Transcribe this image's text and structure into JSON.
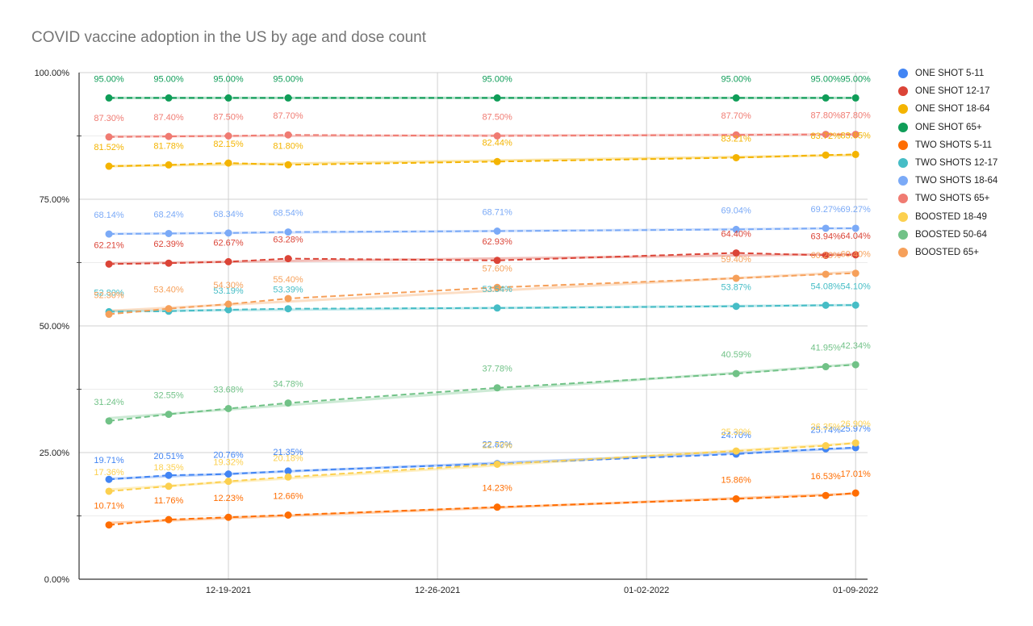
{
  "chart_data": {
    "type": "line",
    "title": "COVID vaccine adoption in the US by age and dose count",
    "xlabel": "",
    "ylabel": "",
    "ylim": [
      0,
      100
    ],
    "y_ticks": [
      "0.00%",
      "25.00%",
      "50.00%",
      "75.00%",
      "100.00%"
    ],
    "x_tick_labels": [
      "12-19-2021",
      "12-26-2021",
      "01-02-2022",
      "01-09-2022"
    ],
    "x_tick_days": [
      17,
      24,
      31,
      38
    ],
    "x": [
      13,
      15,
      17,
      19,
      26,
      34,
      37,
      38
    ],
    "x_dates": [
      "12-15-2021",
      "12-17-2021",
      "12-19-2021",
      "12-21-2021",
      "12-28-2021",
      "01-05-2022",
      "01-08-2022",
      "01-09-2022"
    ],
    "grid": true,
    "trendlines": true,
    "legend_position": "right",
    "series": [
      {
        "name": "ONE SHOT 5-11",
        "color": "#4285f4",
        "values": [
          19.71,
          20.51,
          20.76,
          21.35,
          22.82,
          24.7,
          25.74,
          25.97
        ],
        "labels": [
          "19.71%",
          "20.51%",
          "20.76%",
          "21.35%",
          "22.82%",
          "24.70%",
          "25.74%",
          "25.97%"
        ]
      },
      {
        "name": "ONE SHOT 12-17",
        "color": "#db4437",
        "values": [
          62.21,
          62.39,
          62.67,
          63.28,
          62.93,
          64.4,
          63.94,
          64.04
        ],
        "labels": [
          "62.21%",
          "62.39%",
          "62.67%",
          "63.28%",
          "62.93%",
          "64.40%",
          "63.94%",
          "64.04%"
        ]
      },
      {
        "name": "ONE SHOT 18-64",
        "color": "#f4b400",
        "values": [
          81.52,
          81.78,
          82.15,
          81.8,
          82.44,
          83.21,
          83.72,
          83.85
        ],
        "labels": [
          "81.52%",
          "81.78%",
          "82.15%",
          "81.80%",
          "82.44%",
          "83.21%",
          "83.72%",
          "83.85%"
        ]
      },
      {
        "name": "ONE SHOT 65+",
        "color": "#0f9d58",
        "values": [
          95,
          95,
          95,
          95,
          95,
          95,
          95,
          95
        ],
        "labels": [
          "95.00%",
          "95.00%",
          "95.00%",
          "95.00%",
          "95.00%",
          "95.00%",
          "95.00%",
          "95.00%"
        ]
      },
      {
        "name": "TWO SHOTS 5-11",
        "color": "#ff6d01",
        "values": [
          10.71,
          11.76,
          12.23,
          12.66,
          14.23,
          15.86,
          16.53,
          17.01
        ],
        "labels": [
          "10.71%",
          "11.76%",
          "12.23%",
          "12.66%",
          "14.23%",
          "15.86%",
          "16.53%",
          "17.01%"
        ]
      },
      {
        "name": "TWO SHOTS 12-17",
        "color": "#46bdc6",
        "values": [
          52.8,
          52.9,
          53.19,
          53.39,
          53.54,
          53.87,
          54.08,
          54.1
        ],
        "labels": [
          "52.80%",
          "",
          "53.19%",
          "53.39%",
          "53.54%",
          "53.87%",
          "54.08%",
          "54.10%"
        ]
      },
      {
        "name": "TWO SHOTS 18-64",
        "color": "#7baaf7",
        "values": [
          68.14,
          68.24,
          68.34,
          68.54,
          68.71,
          69.04,
          69.27,
          69.27
        ],
        "labels": [
          "68.14%",
          "68.24%",
          "68.34%",
          "68.54%",
          "68.71%",
          "69.04%",
          "69.27%",
          "69.27%"
        ]
      },
      {
        "name": "TWO SHOTS 65+",
        "color": "#f07b72",
        "values": [
          87.3,
          87.4,
          87.5,
          87.7,
          87.5,
          87.7,
          87.8,
          87.8
        ],
        "labels": [
          "87.30%",
          "87.40%",
          "87.50%",
          "87.70%",
          "87.50%",
          "87.70%",
          "87.80%",
          "87.80%"
        ]
      },
      {
        "name": "BOOSTED 18-49",
        "color": "#fcd04f",
        "values": [
          17.36,
          18.35,
          19.32,
          20.18,
          22.7,
          25.3,
          26.35,
          26.9
        ],
        "labels": [
          "17.36%",
          "18.35%",
          "19.32%",
          "20.18%",
          "22.70%",
          "25.30%",
          "26.35%",
          "26.90%"
        ]
      },
      {
        "name": "BOOSTED 50-64",
        "color": "#71c287",
        "values": [
          31.24,
          32.55,
          33.68,
          34.78,
          37.78,
          40.59,
          41.95,
          42.34
        ],
        "labels": [
          "31.24%",
          "32.55%",
          "33.68%",
          "34.78%",
          "37.78%",
          "40.59%",
          "41.95%",
          "42.34%"
        ]
      },
      {
        "name": "BOOSTED 65+",
        "color": "#f6a05a",
        "values": [
          52.3,
          53.4,
          54.3,
          55.4,
          57.6,
          59.4,
          60.2,
          60.4
        ],
        "labels": [
          "52.30%",
          "53.40%",
          "54.30%",
          "55.40%",
          "57.60%",
          "59.40%",
          "60.20%",
          "60.40%"
        ]
      }
    ]
  }
}
